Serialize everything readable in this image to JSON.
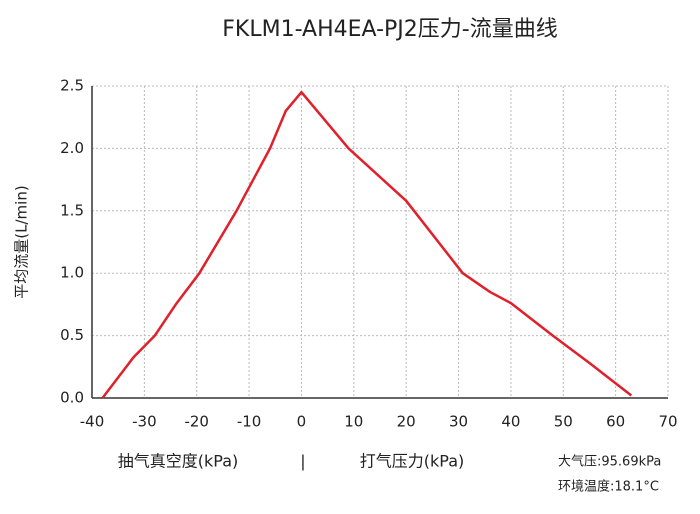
{
  "chart_data": {
    "type": "line",
    "title": "FKLM1-AH4EA-PJ2压力-流量曲线",
    "y_label": "平均流量(L/min)",
    "x_label_left": "抽气真空度(kPa)",
    "x_label_separator": "|",
    "x_label_right": "打气压力(kPa)",
    "notes": [
      "大气压:95.69kPa",
      "环境温度:18.1°C"
    ],
    "x": [
      -38,
      -32,
      -28,
      -24,
      -19.5,
      -12.4,
      -6,
      -3,
      0,
      9,
      20,
      30.8,
      36,
      40,
      48,
      55,
      63
    ],
    "series": [
      {
        "name": "流量",
        "color": "#e0202a",
        "values": [
          0,
          0.33,
          0.5,
          0.75,
          1.0,
          1.5,
          2.0,
          2.3,
          2.45,
          2.0,
          1.58,
          1.0,
          0.85,
          0.76,
          0.5,
          0.28,
          0.02
        ]
      }
    ],
    "xlim": [
      -40,
      70
    ],
    "xticks": [
      -40,
      -30,
      -20,
      -10,
      0,
      10,
      20,
      30,
      40,
      50,
      60,
      70
    ],
    "ylim": [
      0,
      2.5
    ],
    "yticks": [
      {
        "value": 0,
        "label": "0.0"
      },
      {
        "value": 0.5,
        "label": "0.5"
      },
      {
        "value": 1,
        "label": "1.0"
      },
      {
        "value": 1.5,
        "label": "1.5"
      },
      {
        "value": 2,
        "label": "2.0"
      },
      {
        "value": 2.5,
        "label": "2.5"
      }
    ],
    "grid": true
  }
}
